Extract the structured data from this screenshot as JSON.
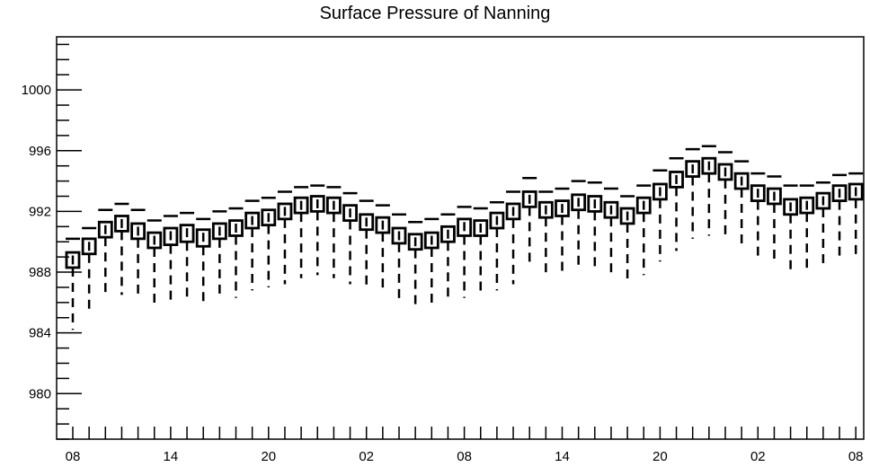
{
  "chart_data": {
    "type": "box",
    "title": "Surface Pressure of Nanning",
    "xlabel": "",
    "ylabel": "",
    "ylim": [
      977,
      1003.5
    ],
    "y_ticks": [
      980,
      984,
      988,
      992,
      996,
      1000
    ],
    "x_tick_labels": [
      "08",
      "14",
      "20",
      "02",
      "08",
      "14",
      "20",
      "02",
      "08"
    ],
    "x_tick_label_indices": [
      0,
      6,
      12,
      18,
      24,
      30,
      36,
      42,
      48
    ],
    "grid": false,
    "legend": "none",
    "boxes": [
      {
        "x": 0,
        "min": 984.2,
        "q1": 988.3,
        "median": 988.8,
        "q3": 989.3,
        "max": 990.2
      },
      {
        "x": 1,
        "min": 985.2,
        "q1": 989.2,
        "median": 989.7,
        "q3": 990.2,
        "max": 990.9
      },
      {
        "x": 2,
        "min": 986.3,
        "q1": 990.3,
        "median": 990.8,
        "q3": 991.3,
        "max": 992.1
      },
      {
        "x": 3,
        "min": 986.5,
        "q1": 990.7,
        "median": 991.2,
        "q3": 991.7,
        "max": 992.5
      },
      {
        "x": 4,
        "min": 986.2,
        "q1": 990.2,
        "median": 990.7,
        "q3": 991.2,
        "max": 992.1
      },
      {
        "x": 5,
        "min": 985.6,
        "q1": 989.6,
        "median": 990.1,
        "q3": 990.6,
        "max": 991.4
      },
      {
        "x": 6,
        "min": 985.8,
        "q1": 989.8,
        "median": 990.4,
        "q3": 990.9,
        "max": 991.7
      },
      {
        "x": 7,
        "min": 986.0,
        "q1": 990.0,
        "median": 990.6,
        "q3": 991.1,
        "max": 991.9
      },
      {
        "x": 8,
        "min": 985.7,
        "q1": 989.7,
        "median": 990.3,
        "q3": 990.8,
        "max": 991.5
      },
      {
        "x": 9,
        "min": 986.2,
        "q1": 990.2,
        "median": 990.7,
        "q3": 991.2,
        "max": 992.0
      },
      {
        "x": 10,
        "min": 986.3,
        "q1": 990.4,
        "median": 990.9,
        "q3": 991.4,
        "max": 992.2
      },
      {
        "x": 11,
        "min": 986.8,
        "q1": 990.9,
        "median": 991.4,
        "q3": 991.9,
        "max": 992.7
      },
      {
        "x": 12,
        "min": 987.0,
        "q1": 991.1,
        "median": 991.6,
        "q3": 992.1,
        "max": 992.9
      },
      {
        "x": 13,
        "min": 987.2,
        "q1": 991.5,
        "median": 992.0,
        "q3": 992.5,
        "max": 993.3
      },
      {
        "x": 14,
        "min": 987.6,
        "q1": 991.9,
        "median": 992.4,
        "q3": 992.9,
        "max": 993.6
      },
      {
        "x": 15,
        "min": 987.8,
        "q1": 992.0,
        "median": 992.5,
        "q3": 993.0,
        "max": 993.7
      },
      {
        "x": 16,
        "min": 987.6,
        "q1": 991.9,
        "median": 992.4,
        "q3": 992.9,
        "max": 993.6
      },
      {
        "x": 17,
        "min": 987.2,
        "q1": 991.4,
        "median": 991.9,
        "q3": 992.4,
        "max": 993.2
      },
      {
        "x": 18,
        "min": 986.8,
        "q1": 990.8,
        "median": 991.3,
        "q3": 991.8,
        "max": 992.7
      },
      {
        "x": 19,
        "min": 986.8,
        "q1": 990.6,
        "median": 991.1,
        "q3": 991.6,
        "max": 992.4
      },
      {
        "x": 20,
        "min": 986.0,
        "q1": 989.9,
        "median": 990.4,
        "q3": 990.9,
        "max": 991.8
      },
      {
        "x": 21,
        "min": 985.6,
        "q1": 989.5,
        "median": 990.0,
        "q3": 990.5,
        "max": 991.3
      },
      {
        "x": 22,
        "min": 985.6,
        "q1": 989.6,
        "median": 990.1,
        "q3": 990.6,
        "max": 991.5
      },
      {
        "x": 23,
        "min": 986.0,
        "q1": 990.0,
        "median": 990.5,
        "q3": 991.0,
        "max": 991.8
      },
      {
        "x": 24,
        "min": 986.3,
        "q1": 990.4,
        "median": 991.0,
        "q3": 991.5,
        "max": 992.3
      },
      {
        "x": 25,
        "min": 986.4,
        "q1": 990.4,
        "median": 990.9,
        "q3": 991.4,
        "max": 992.2
      },
      {
        "x": 26,
        "min": 986.8,
        "q1": 990.9,
        "median": 991.4,
        "q3": 991.9,
        "max": 992.6
      },
      {
        "x": 27,
        "min": 987.2,
        "q1": 991.5,
        "median": 992.0,
        "q3": 992.5,
        "max": 993.3
      },
      {
        "x": 28,
        "min": 988.3,
        "q1": 992.3,
        "median": 992.8,
        "q3": 993.3,
        "max": 994.2
      },
      {
        "x": 29,
        "min": 987.6,
        "q1": 991.6,
        "median": 992.1,
        "q3": 992.6,
        "max": 993.3
      },
      {
        "x": 30,
        "min": 987.8,
        "q1": 991.7,
        "median": 992.2,
        "q3": 992.7,
        "max": 993.5
      },
      {
        "x": 31,
        "min": 988.2,
        "q1": 992.1,
        "median": 992.6,
        "q3": 993.1,
        "max": 994.0
      },
      {
        "x": 32,
        "min": 988.2,
        "q1": 992.0,
        "median": 992.5,
        "q3": 993.0,
        "max": 993.9
      },
      {
        "x": 33,
        "min": 987.7,
        "q1": 991.6,
        "median": 992.1,
        "q3": 992.6,
        "max": 993.5
      },
      {
        "x": 34,
        "min": 987.2,
        "q1": 991.2,
        "median": 991.7,
        "q3": 992.2,
        "max": 993.0
      },
      {
        "x": 35,
        "min": 987.8,
        "q1": 991.9,
        "median": 992.4,
        "q3": 992.9,
        "max": 993.7
      },
      {
        "x": 36,
        "min": 988.7,
        "q1": 992.8,
        "median": 993.3,
        "q3": 993.8,
        "max": 994.7
      },
      {
        "x": 37,
        "min": 989.4,
        "q1": 993.6,
        "median": 994.1,
        "q3": 994.6,
        "max": 995.5
      },
      {
        "x": 38,
        "min": 990.2,
        "q1": 994.3,
        "median": 994.8,
        "q3": 995.3,
        "max": 996.1
      },
      {
        "x": 39,
        "min": 990.4,
        "q1": 994.5,
        "median": 995.0,
        "q3": 995.5,
        "max": 996.3
      },
      {
        "x": 40,
        "min": 990.1,
        "q1": 994.1,
        "median": 994.6,
        "q3": 995.1,
        "max": 995.9
      },
      {
        "x": 41,
        "min": 989.6,
        "q1": 993.5,
        "median": 994.0,
        "q3": 994.5,
        "max": 995.3
      },
      {
        "x": 42,
        "min": 988.7,
        "q1": 992.7,
        "median": 993.2,
        "q3": 993.7,
        "max": 994.5
      },
      {
        "x": 43,
        "min": 988.5,
        "q1": 992.5,
        "median": 993.0,
        "q3": 993.5,
        "max": 994.3
      },
      {
        "x": 44,
        "min": 987.9,
        "q1": 991.8,
        "median": 992.3,
        "q3": 992.8,
        "max": 993.7
      },
      {
        "x": 45,
        "min": 987.9,
        "q1": 991.9,
        "median": 992.4,
        "q3": 992.9,
        "max": 993.7
      },
      {
        "x": 46,
        "min": 988.2,
        "q1": 992.2,
        "median": 992.7,
        "q3": 993.2,
        "max": 993.9
      },
      {
        "x": 47,
        "min": 988.7,
        "q1": 992.7,
        "median": 993.2,
        "q3": 993.7,
        "max": 994.4
      },
      {
        "x": 48,
        "min": 988.8,
        "q1": 992.8,
        "median": 993.3,
        "q3": 993.8,
        "max": 994.5
      }
    ]
  }
}
